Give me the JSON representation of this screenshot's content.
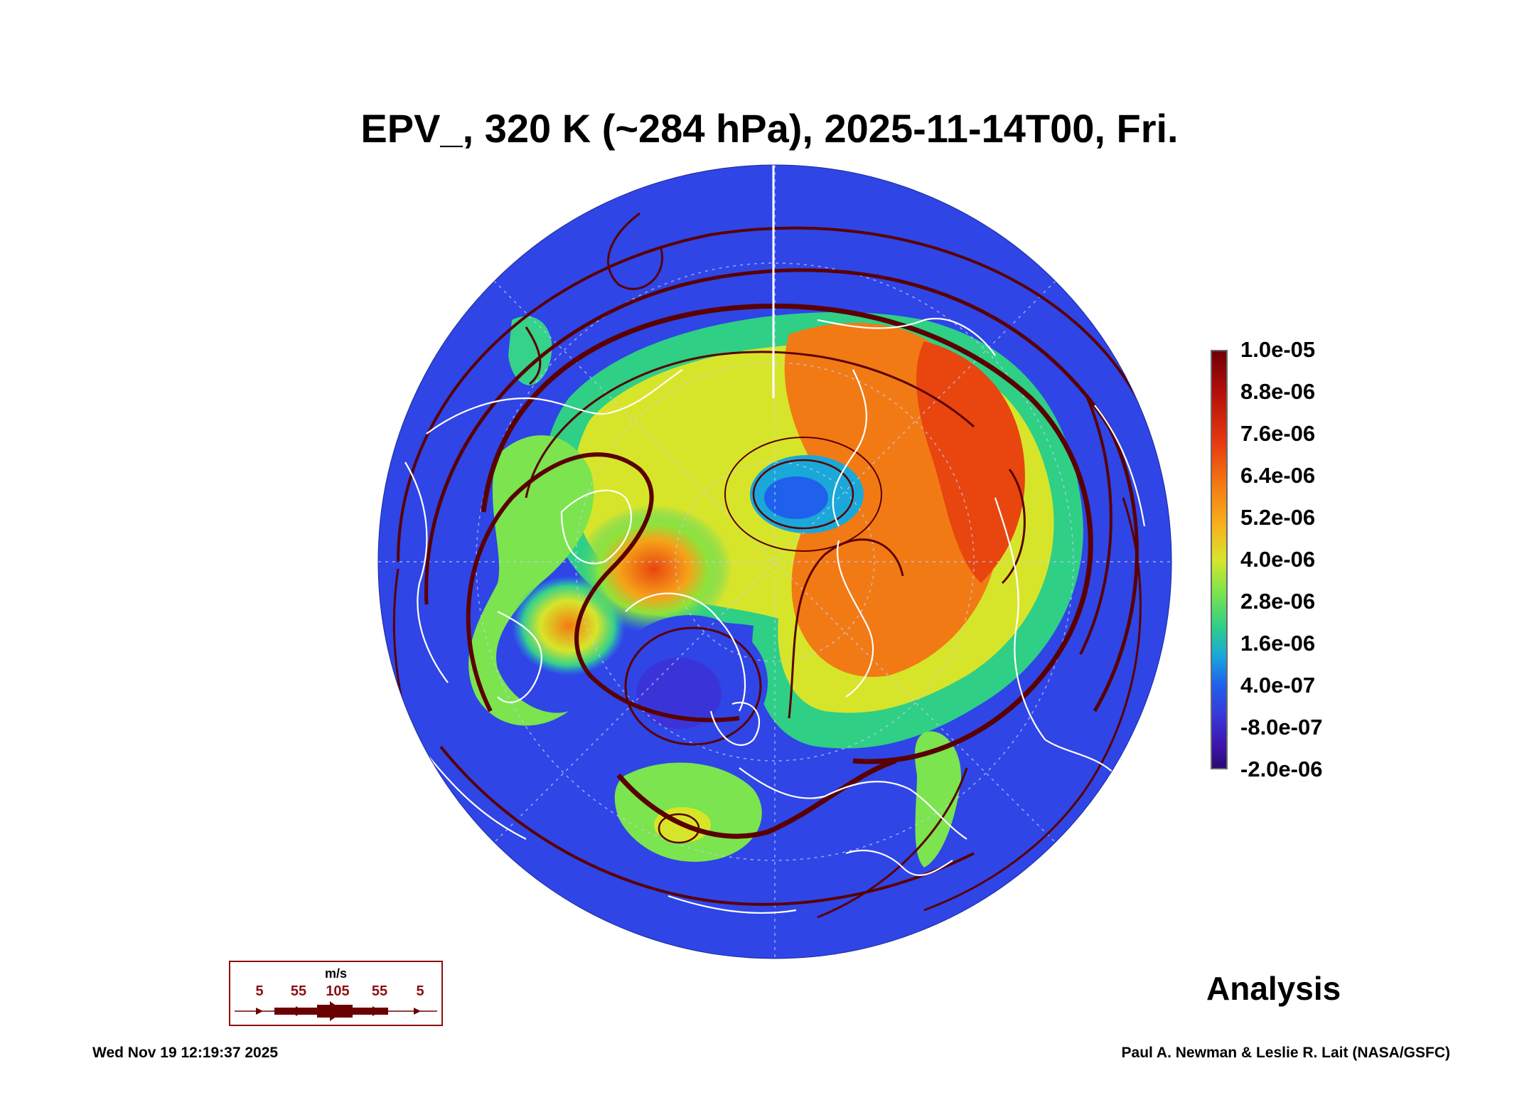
{
  "title": "EPV_, 320 K (~284 hPa), 2025-11-14T00, Fri.",
  "colorbar": {
    "ticks": [
      "1.0e-05",
      "8.8e-06",
      "7.6e-06",
      "6.4e-06",
      "5.2e-06",
      "4.0e-06",
      "2.8e-06",
      "1.6e-06",
      "4.0e-07",
      "-8.0e-07",
      "-2.0e-06"
    ],
    "colors": [
      "#6e0008",
      "#b50f0a",
      "#e63a10",
      "#f47a12",
      "#f7b21e",
      "#d7e52a",
      "#7be44e",
      "#2fcf86",
      "#1aa8d8",
      "#1f61ec",
      "#3a34d8",
      "#2a0a6e"
    ]
  },
  "wind_legend": {
    "unit": "m/s",
    "values": [
      "5",
      "55",
      "105",
      "55",
      "5"
    ],
    "color": "#6b0000"
  },
  "label": "Analysis",
  "footer": {
    "timestamp": "Wed Nov 19 12:19:37 2025",
    "credit": "Paul A. Newman & Leslie R. Lait (NASA/GSFC)"
  },
  "map": {
    "projection": "orthographic-north-polar",
    "field_colors": {
      "low": "#2f3fe0",
      "mid": "#3fd36a",
      "high": "#f27a14",
      "peak": "#8c0a0a"
    },
    "streamline_color": "#5a0000",
    "coastline_color": "#ffffff"
  }
}
